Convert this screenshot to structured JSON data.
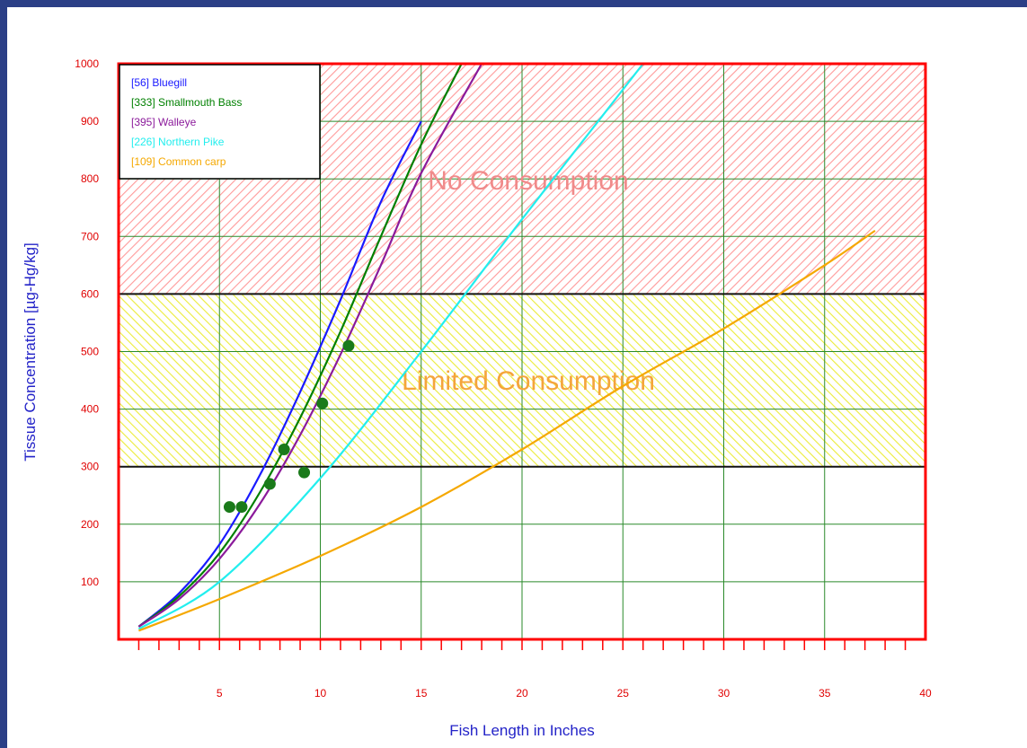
{
  "chart_data": {
    "type": "line",
    "xlabel": "Fish Length in Inches",
    "ylabel": "Tissue Concentration [µg-Hg/kg]",
    "xlim": [
      0,
      40
    ],
    "ylim": [
      0,
      1000
    ],
    "x_ticks": [
      5,
      10,
      15,
      20,
      25,
      30,
      35,
      40
    ],
    "y_ticks": [
      100,
      200,
      300,
      400,
      500,
      600,
      700,
      800,
      900,
      1000
    ],
    "grid": true,
    "legend_position": "top-left",
    "zones": [
      {
        "label": "No Consumption",
        "y_from": 600,
        "y_to": 1000,
        "color": "#ff8c8c",
        "label_color": "#f08a8a"
      },
      {
        "label": "Limited Consumption",
        "y_from": 300,
        "y_to": 600,
        "color": "#e8e800",
        "label_color": "#f4a43c"
      }
    ],
    "series": [
      {
        "name": "[56] Bluegill",
        "color": "#1a1aff",
        "x": [
          1,
          3,
          5,
          7,
          9,
          11,
          13,
          15
        ],
        "y": [
          22,
          80,
          165,
          285,
          430,
          590,
          760,
          900
        ]
      },
      {
        "name": "[333] Smallmouth Bass",
        "color": "#008000",
        "x": [
          1,
          3,
          5,
          7,
          9,
          11,
          13,
          15,
          17
        ],
        "y": [
          22,
          75,
          150,
          255,
          385,
          535,
          700,
          860,
          1000
        ]
      },
      {
        "name": "[395] Walleye",
        "color": "#8b1a9b",
        "x": [
          1,
          3,
          5,
          7,
          9,
          11,
          13,
          15,
          18
        ],
        "y": [
          22,
          70,
          140,
          235,
          355,
          495,
          650,
          810,
          1000
        ]
      },
      {
        "name": "[226] Northern Pike",
        "color": "#22eeee",
        "x": [
          1,
          5,
          10,
          15,
          20,
          26
        ],
        "y": [
          18,
          100,
          280,
          500,
          730,
          1000
        ]
      },
      {
        "name": "[109] Common carp",
        "color": "#f5a800",
        "x": [
          1,
          5,
          10,
          15,
          20,
          25,
          30,
          35,
          37.5
        ],
        "y": [
          15,
          70,
          145,
          230,
          330,
          440,
          540,
          650,
          710
        ]
      }
    ],
    "points": {
      "color": "#1a7a1a",
      "x": [
        5.5,
        6.1,
        7.5,
        8.2,
        9.2,
        10.1,
        11.4
      ],
      "y": [
        230,
        230,
        270,
        330,
        290,
        410,
        510
      ]
    }
  }
}
